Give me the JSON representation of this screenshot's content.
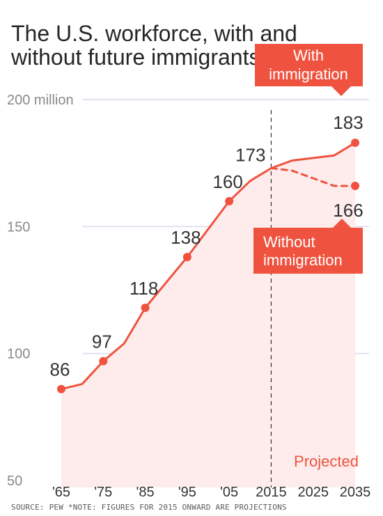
{
  "title": "The U.S. workforce, with and without future immigrants",
  "source_note": "SOURCE: PEW   *NOTE: FIGURES FOR 2015 ONWARD ARE PROJECTIONS",
  "colors": {
    "line": "#ef5340",
    "fill": "#fdeceb",
    "callout": "#ef5340",
    "grid": "#d9dbe8",
    "divider": "#333333"
  },
  "chart_data": {
    "type": "line",
    "title": "The U.S. workforce, with and without future immigrants",
    "ylim": [
      50,
      200
    ],
    "y_ticks": [
      {
        "value": 200,
        "label": "200 million"
      },
      {
        "value": 150,
        "label": "150"
      },
      {
        "value": 100,
        "label": "100"
      },
      {
        "value": 50,
        "label": "50"
      }
    ],
    "x_range": [
      1965,
      2035
    ],
    "x_ticks": [
      {
        "value": 1965,
        "label": "'65"
      },
      {
        "value": 1975,
        "label": "'75"
      },
      {
        "value": 1985,
        "label": "'85"
      },
      {
        "value": 1995,
        "label": "'95"
      },
      {
        "value": 2005,
        "label": "'05"
      },
      {
        "value": 2015,
        "label": "2015"
      },
      {
        "value": 2025,
        "label": "2025"
      },
      {
        "value": 2035,
        "label": "2035"
      }
    ],
    "grid": true,
    "projection_start": 2015,
    "projection_label": "Projected",
    "series": [
      {
        "name": "With immigration",
        "style": "solid",
        "points": [
          [
            1965,
            86
          ],
          [
            1970,
            88
          ],
          [
            1975,
            97
          ],
          [
            1980,
            104
          ],
          [
            1985,
            118
          ],
          [
            1990,
            128
          ],
          [
            1995,
            138
          ],
          [
            2000,
            149
          ],
          [
            2005,
            160
          ],
          [
            2010,
            168
          ],
          [
            2015,
            173
          ],
          [
            2020,
            176
          ],
          [
            2025,
            177
          ],
          [
            2030,
            178
          ],
          [
            2035,
            183
          ]
        ],
        "marked": [
          {
            "x": 1965,
            "y": 86,
            "label": "86"
          },
          {
            "x": 1975,
            "y": 97,
            "label": "97"
          },
          {
            "x": 1985,
            "y": 118,
            "label": "118"
          },
          {
            "x": 1995,
            "y": 138,
            "label": "138"
          },
          {
            "x": 2005,
            "y": 160,
            "label": "160"
          },
          {
            "x": 2015,
            "y": 173,
            "label": "173"
          },
          {
            "x": 2035,
            "y": 183,
            "label": "183"
          }
        ]
      },
      {
        "name": "Without immigration",
        "style": "dashed",
        "points": [
          [
            2015,
            173
          ],
          [
            2020,
            172
          ],
          [
            2025,
            169
          ],
          [
            2030,
            166
          ],
          [
            2035,
            166
          ]
        ],
        "marked": [
          {
            "x": 2035,
            "y": 166,
            "label": "166"
          }
        ]
      }
    ],
    "callouts": [
      {
        "series": "With immigration",
        "lines": [
          "With",
          "immigration"
        ]
      },
      {
        "series": "Without immigration",
        "lines": [
          "Without",
          "immigration"
        ]
      }
    ]
  }
}
